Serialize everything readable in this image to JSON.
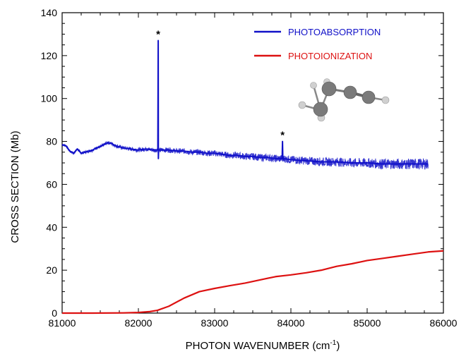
{
  "chart_data": {
    "type": "line",
    "title": "",
    "xlabel": "PHOTON WAVENUMBER (cm",
    "xlabel_sup": "-1",
    "xlabel_end": ")",
    "ylabel": "CROSS SECTION  (Mb)",
    "xlim": [
      81000,
      86000
    ],
    "ylim": [
      0,
      140
    ],
    "x_ticks": [
      81000,
      82000,
      83000,
      84000,
      85000,
      86000
    ],
    "y_ticks": [
      0,
      20,
      40,
      60,
      80,
      100,
      120,
      140
    ],
    "x_tick_labels": [
      "81000",
      "82000",
      "83000",
      "84000",
      "85000",
      "86000"
    ],
    "y_tick_labels": [
      "0",
      "20",
      "40",
      "60",
      "80",
      "100",
      "120",
      "140"
    ],
    "legend_position": "top-right",
    "grid": false,
    "annotations": [
      {
        "text": "*",
        "x": 82260,
        "y": 127
      },
      {
        "text": "*",
        "x": 83890,
        "y": 80
      }
    ],
    "series": [
      {
        "name": "PHOTOABSORPTION",
        "color": "#1010c8",
        "x": [
          81000,
          81050,
          81100,
          81150,
          81200,
          81250,
          81300,
          81350,
          81400,
          81450,
          81500,
          81550,
          81600,
          81650,
          81700,
          81800,
          81900,
          82000,
          82100,
          82200,
          82255,
          82260,
          82262,
          82265,
          82270,
          82300,
          82400,
          82500,
          82600,
          82700,
          82800,
          82900,
          83000,
          83100,
          83200,
          83300,
          83400,
          83500,
          83600,
          83700,
          83800,
          83885,
          83890,
          83895,
          83900,
          84000,
          84200,
          84400,
          84600,
          84800,
          85000,
          85200,
          85400,
          85600,
          85800
        ],
        "y": [
          78.5,
          78,
          75.5,
          74.5,
          76.5,
          74.5,
          75,
          75.5,
          76,
          77,
          77.5,
          78.5,
          79.5,
          79,
          78,
          77,
          76.5,
          76,
          76.5,
          76,
          76,
          127,
          72,
          76,
          76,
          76,
          76,
          75.5,
          75.5,
          75,
          75,
          74.5,
          74.5,
          74,
          73.5,
          73.5,
          73,
          73,
          72.5,
          72.5,
          72,
          72,
          80,
          71,
          72,
          71.5,
          71,
          70.5,
          70.5,
          70,
          70,
          69.5,
          69.5,
          69.5,
          69.5
        ]
      },
      {
        "name": "PHOTOIONIZATION",
        "color": "#dd1111",
        "x": [
          81000,
          81400,
          81800,
          82000,
          82150,
          82250,
          82400,
          82600,
          82800,
          83000,
          83200,
          83400,
          83600,
          83800,
          84000,
          84200,
          84400,
          84600,
          84800,
          85000,
          85200,
          85400,
          85600,
          85800,
          86000
        ],
        "y": [
          0,
          0,
          0.1,
          0.3,
          0.7,
          1.3,
          3.2,
          7,
          10,
          11.5,
          12.8,
          14,
          15.5,
          17,
          17.8,
          18.8,
          20,
          21.8,
          23,
          24.5,
          25.5,
          26.5,
          27.5,
          28.5,
          29
        ]
      }
    ]
  }
}
